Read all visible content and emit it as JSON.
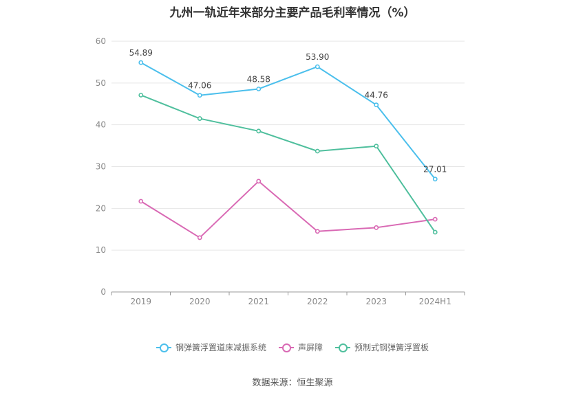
{
  "chart_data": {
    "type": "line",
    "title": "九州一轨近年来部分主要产品毛利率情况（%）",
    "categories": [
      "2019",
      "2020",
      "2021",
      "2022",
      "2023",
      "2024H1"
    ],
    "ylim": [
      0,
      60
    ],
    "yticks": [
      0,
      10,
      20,
      30,
      40,
      50,
      60
    ],
    "grid": true,
    "legend_position": "bottom",
    "series": [
      {
        "name": "钢弹簧浮置道床减振系统",
        "color": "#4bbfec",
        "values": [
          54.89,
          47.06,
          48.58,
          53.9,
          44.76,
          27.01
        ],
        "show_labels": true
      },
      {
        "name": "声屏障",
        "color": "#d969b4",
        "values": [
          21.7,
          13.0,
          26.5,
          14.5,
          15.4,
          17.4
        ],
        "show_labels": false
      },
      {
        "name": "预制式钢弹簧浮置板",
        "color": "#4fbf9d",
        "values": [
          47.1,
          41.5,
          38.5,
          33.7,
          34.9,
          14.3
        ],
        "show_labels": false
      }
    ]
  },
  "source_text": "数据来源：恒生聚源"
}
